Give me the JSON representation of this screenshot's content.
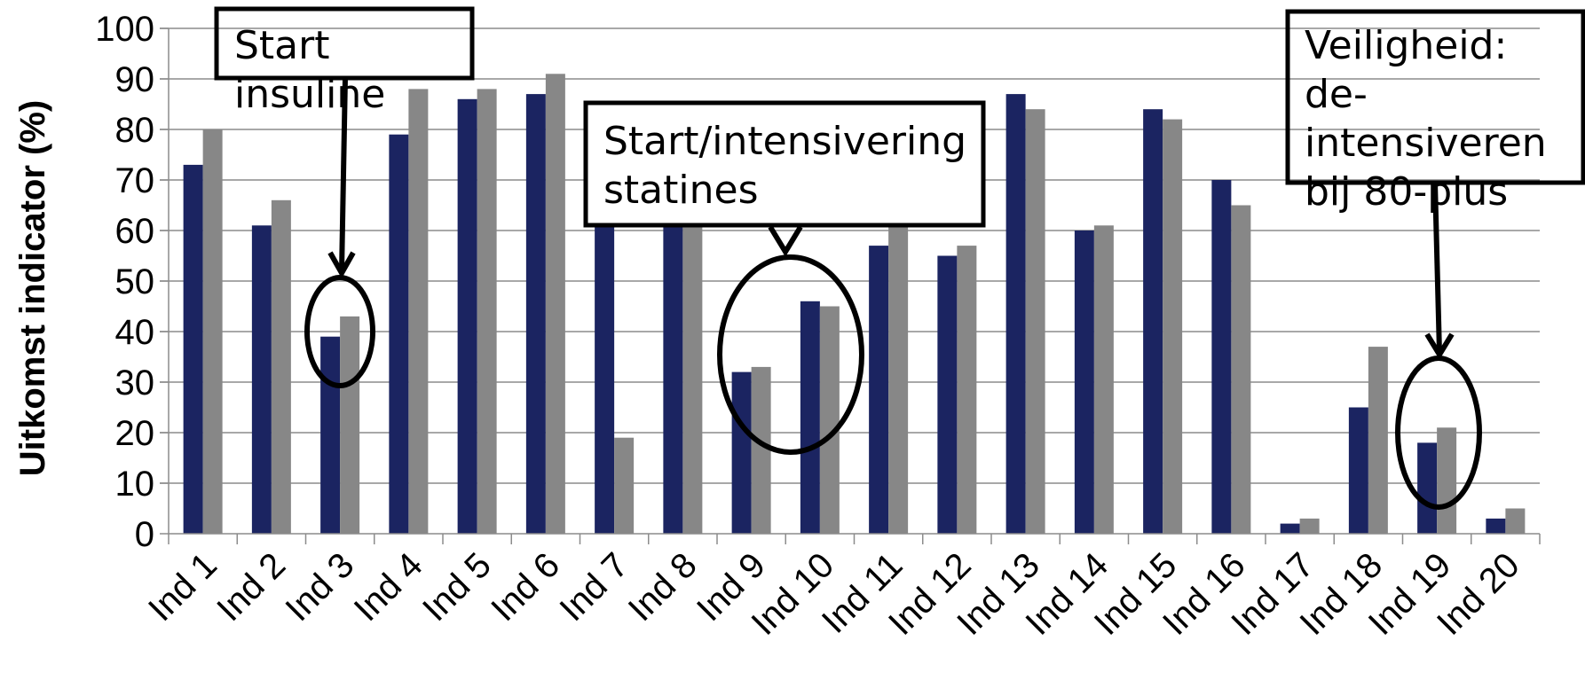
{
  "chart_data": {
    "type": "bar",
    "ylabel": "Uitkomst indicator (%)",
    "ylim": [
      0,
      100
    ],
    "yticks": [
      0,
      10,
      20,
      30,
      40,
      50,
      60,
      70,
      80,
      90,
      100
    ],
    "grid": true,
    "categories": [
      "Ind 1",
      "Ind 2",
      "Ind 3",
      "Ind 4",
      "Ind 5",
      "Ind 6",
      "Ind 7",
      "Ind 8",
      "Ind 9",
      "Ind 10",
      "Ind 11",
      "Ind 12",
      "Ind 13",
      "Ind 14",
      "Ind 15",
      "Ind 16",
      "Ind 17",
      "Ind 18",
      "Ind 19",
      "Ind 20"
    ],
    "series": [
      {
        "color": "#1b2461",
        "values": [
          73,
          61,
          39,
          79,
          86,
          87,
          70,
          65,
          32,
          46,
          57,
          55,
          87,
          60,
          84,
          70,
          2,
          25,
          18,
          3
        ]
      },
      {
        "color": "#878787",
        "values": [
          80,
          66,
          43,
          88,
          88,
          91,
          19,
          65,
          33,
          45,
          62,
          57,
          84,
          61,
          82,
          65,
          3,
          37,
          21,
          5
        ]
      }
    ],
    "annotations": [
      {
        "lines": [
          "Start",
          "insuline"
        ],
        "target_category": "Ind 3"
      },
      {
        "lines": [
          "Start/intensivering",
          "statines"
        ],
        "target_category": "Ind 9 / Ind 10"
      },
      {
        "lines": [
          "Veiligheid:",
          "de-",
          "intensiveren",
          "bij 80-plus"
        ],
        "target_category": "Ind 19"
      }
    ]
  },
  "colors": {
    "series_dark": "#1b2461",
    "series_grey": "#878787",
    "grid": "#8c8c8c"
  }
}
